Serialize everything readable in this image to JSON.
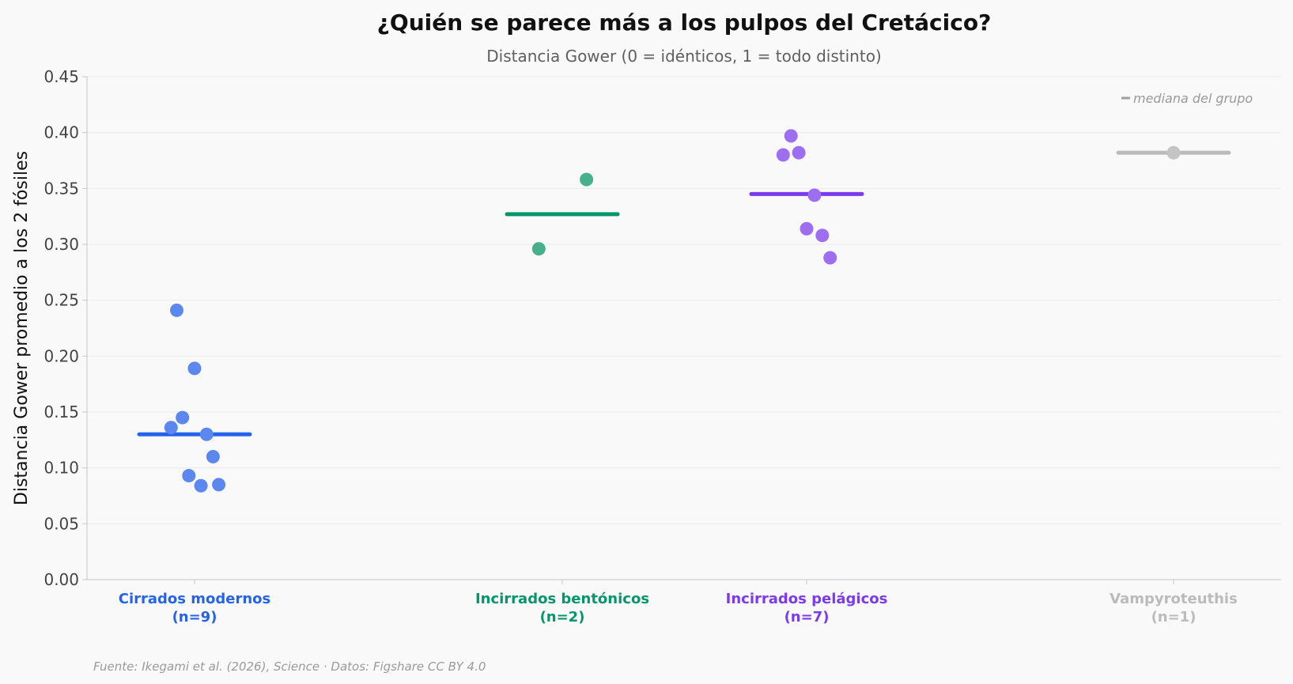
{
  "chart_data": {
    "type": "scatter",
    "title": "¿Quién se parece más a los pulpos del Cretácico?",
    "subtitle": "Distancia Gower (0 = idénticos, 1 = todo distinto)",
    "xlabel": "",
    "ylabel": "Distancia Gower promedio a los 2 fósiles",
    "ylim": [
      0,
      0.45
    ],
    "yticks": [
      "0.00",
      "0.05",
      "0.10",
      "0.15",
      "0.20",
      "0.25",
      "0.30",
      "0.35",
      "0.40",
      "0.45"
    ],
    "grid": true,
    "legend": {
      "label": "mediana del grupo",
      "placement": "top-right"
    },
    "source": "Fuente: Ikegami et al. (2026), Science · Datos: Figshare CC BY 4.0",
    "categories": [
      {
        "name": "Cirrados modernos",
        "count_label": "(n=9)",
        "color": "#2563eb",
        "point_color": "#5b87ee",
        "median": 0.13,
        "values": [
          0.241,
          0.189,
          0.145,
          0.136,
          0.13,
          0.11,
          0.093,
          0.085,
          0.084
        ],
        "jitter": [
          -0.25,
          0.0,
          -0.17,
          -0.33,
          0.17,
          0.26,
          -0.08,
          0.34,
          0.09
        ]
      },
      {
        "name": "Incirrados bentónicos",
        "count_label": "(n=2)",
        "color": "#059669",
        "point_color": "#46b08d",
        "median": 0.327,
        "values": [
          0.358,
          0.296
        ],
        "jitter": [
          0.34,
          -0.33
        ]
      },
      {
        "name": "Incirrados pelágicos",
        "count_label": "(n=7)",
        "color": "#7c3aed",
        "point_color": "#9d6ef0",
        "median": 0.345,
        "values": [
          0.397,
          0.382,
          0.38,
          0.344,
          0.314,
          0.308,
          0.288
        ],
        "jitter": [
          -0.22,
          -0.11,
          -0.33,
          0.11,
          0.0,
          0.22,
          0.33
        ]
      },
      {
        "name": "Vampyroteuthis",
        "count_label": "(n=1)",
        "color": "#bbbbbb",
        "point_color": "#c4c4c4",
        "median": 0.382,
        "values": [
          0.382
        ],
        "jitter": [
          0.0
        ]
      }
    ]
  }
}
